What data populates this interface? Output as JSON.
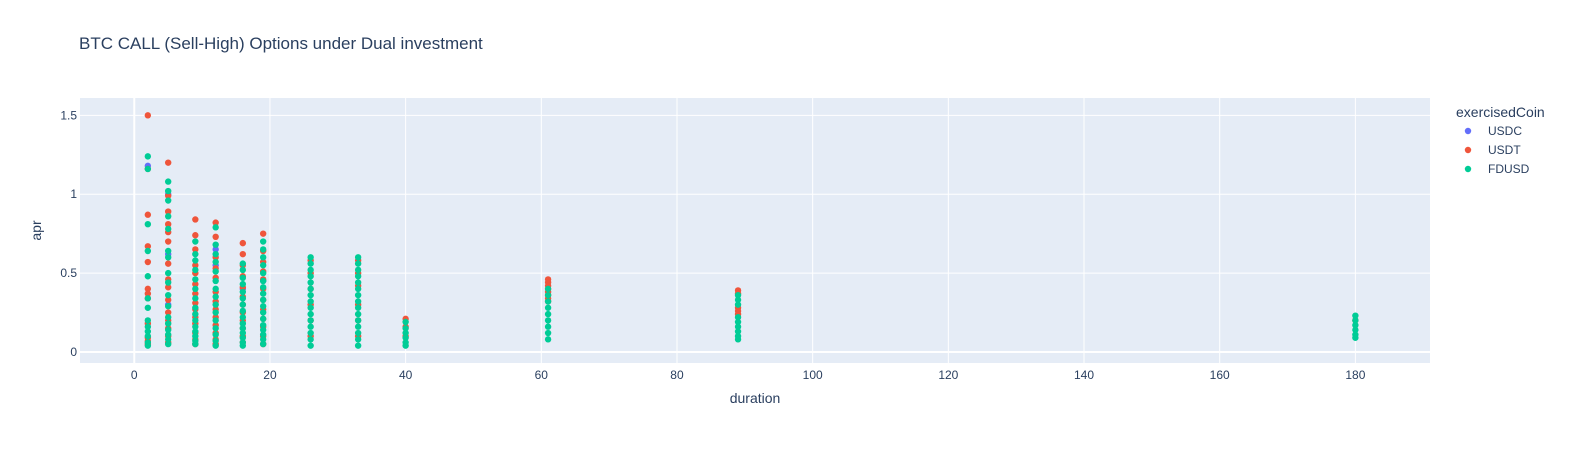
{
  "chart_data": {
    "type": "scatter",
    "title": "BTC CALL (Sell-High) Options under Dual investment",
    "xlabel": "duration",
    "ylabel": "apr",
    "xlim": [
      -8,
      191
    ],
    "ylim": [
      -0.07,
      1.61
    ],
    "x_ticks": [
      0,
      20,
      40,
      60,
      80,
      100,
      120,
      140,
      160,
      180
    ],
    "y_ticks": [
      0,
      0.5,
      1,
      1.5
    ],
    "y_tick_labels": [
      "0",
      "0.5",
      "1",
      "1.5"
    ],
    "grid": true,
    "legend": {
      "title": "exercisedCoin",
      "placement": "top-right"
    },
    "series": [
      {
        "name": "USDC",
        "color": "#636efa",
        "points": [
          [
            2,
            1.18
          ],
          [
            5,
            1.0
          ],
          [
            5,
            0.62
          ],
          [
            5,
            0.3
          ],
          [
            12,
            0.65
          ],
          [
            12,
            0.55
          ],
          [
            16,
            0.4
          ],
          [
            19,
            0.45
          ]
        ]
      },
      {
        "name": "USDT",
        "color": "#ef553b",
        "points": [
          [
            2,
            1.5
          ],
          [
            2,
            1.16
          ],
          [
            2,
            0.87
          ],
          [
            2,
            0.67
          ],
          [
            2,
            0.57
          ],
          [
            2,
            0.4
          ],
          [
            2,
            0.37
          ],
          [
            2,
            0.34
          ],
          [
            2,
            0.18
          ],
          [
            2,
            0.09
          ],
          [
            2,
            0.07
          ],
          [
            2,
            0.05
          ],
          [
            5,
            1.2
          ],
          [
            5,
            0.99
          ],
          [
            5,
            0.89
          ],
          [
            5,
            0.81
          ],
          [
            5,
            0.76
          ],
          [
            5,
            0.7
          ],
          [
            5,
            0.56
          ],
          [
            5,
            0.46
          ],
          [
            5,
            0.41
          ],
          [
            5,
            0.33
          ],
          [
            5,
            0.25
          ],
          [
            5,
            0.2
          ],
          [
            5,
            0.15
          ],
          [
            5,
            0.1
          ],
          [
            5,
            0.06
          ],
          [
            9,
            0.84
          ],
          [
            9,
            0.74
          ],
          [
            9,
            0.65
          ],
          [
            9,
            0.55
          ],
          [
            9,
            0.5
          ],
          [
            9,
            0.43
          ],
          [
            9,
            0.37
          ],
          [
            9,
            0.31
          ],
          [
            9,
            0.27
          ],
          [
            9,
            0.22
          ],
          [
            9,
            0.18
          ],
          [
            9,
            0.12
          ],
          [
            9,
            0.08
          ],
          [
            9,
            0.05
          ],
          [
            12,
            0.82
          ],
          [
            12,
            0.73
          ],
          [
            12,
            0.6
          ],
          [
            12,
            0.53
          ],
          [
            12,
            0.47
          ],
          [
            12,
            0.38
          ],
          [
            12,
            0.32
          ],
          [
            12,
            0.27
          ],
          [
            12,
            0.22
          ],
          [
            12,
            0.17
          ],
          [
            12,
            0.12
          ],
          [
            12,
            0.08
          ],
          [
            12,
            0.05
          ],
          [
            16,
            0.69
          ],
          [
            16,
            0.62
          ],
          [
            16,
            0.55
          ],
          [
            16,
            0.48
          ],
          [
            16,
            0.41
          ],
          [
            16,
            0.35
          ],
          [
            16,
            0.3
          ],
          [
            16,
            0.25
          ],
          [
            16,
            0.2
          ],
          [
            16,
            0.15
          ],
          [
            16,
            0.1
          ],
          [
            16,
            0.06
          ],
          [
            19,
            0.75
          ],
          [
            19,
            0.64
          ],
          [
            19,
            0.57
          ],
          [
            19,
            0.51
          ],
          [
            19,
            0.46
          ],
          [
            19,
            0.4
          ],
          [
            19,
            0.33
          ],
          [
            19,
            0.27
          ],
          [
            19,
            0.21
          ],
          [
            19,
            0.16
          ],
          [
            19,
            0.1
          ],
          [
            19,
            0.05
          ],
          [
            26,
            0.58
          ],
          [
            26,
            0.5
          ],
          [
            26,
            0.4
          ],
          [
            26,
            0.3
          ],
          [
            26,
            0.2
          ],
          [
            26,
            0.1
          ],
          [
            33,
            0.58
          ],
          [
            33,
            0.5
          ],
          [
            33,
            0.42
          ],
          [
            33,
            0.3
          ],
          [
            33,
            0.2
          ],
          [
            33,
            0.1
          ],
          [
            40,
            0.21
          ],
          [
            40,
            0.16
          ],
          [
            40,
            0.1
          ],
          [
            61,
            0.46
          ],
          [
            61,
            0.44
          ],
          [
            61,
            0.42
          ],
          [
            61,
            0.4
          ],
          [
            61,
            0.38
          ],
          [
            61,
            0.36
          ],
          [
            61,
            0.34
          ],
          [
            61,
            0.32
          ],
          [
            89,
            0.39
          ],
          [
            89,
            0.37
          ],
          [
            89,
            0.28
          ],
          [
            89,
            0.26
          ],
          [
            89,
            0.24
          ],
          [
            180,
            0.2
          ]
        ]
      },
      {
        "name": "FDUSD",
        "color": "#00cc96",
        "points": [
          [
            2,
            1.24
          ],
          [
            2,
            1.16
          ],
          [
            2,
            0.81
          ],
          [
            2,
            0.64
          ],
          [
            2,
            0.48
          ],
          [
            2,
            0.34
          ],
          [
            2,
            0.28
          ],
          [
            2,
            0.2
          ],
          [
            2,
            0.16
          ],
          [
            2,
            0.13
          ],
          [
            2,
            0.1
          ],
          [
            2,
            0.06
          ],
          [
            2,
            0.04
          ],
          [
            5,
            1.08
          ],
          [
            5,
            1.02
          ],
          [
            5,
            0.96
          ],
          [
            5,
            0.86
          ],
          [
            5,
            0.78
          ],
          [
            5,
            0.64
          ],
          [
            5,
            0.6
          ],
          [
            5,
            0.5
          ],
          [
            5,
            0.44
          ],
          [
            5,
            0.36
          ],
          [
            5,
            0.29
          ],
          [
            5,
            0.22
          ],
          [
            5,
            0.18
          ],
          [
            5,
            0.14
          ],
          [
            5,
            0.11
          ],
          [
            5,
            0.08
          ],
          [
            5,
            0.05
          ],
          [
            9,
            0.7
          ],
          [
            9,
            0.62
          ],
          [
            9,
            0.58
          ],
          [
            9,
            0.52
          ],
          [
            9,
            0.46
          ],
          [
            9,
            0.4
          ],
          [
            9,
            0.34
          ],
          [
            9,
            0.28
          ],
          [
            9,
            0.24
          ],
          [
            9,
            0.2
          ],
          [
            9,
            0.16
          ],
          [
            9,
            0.13
          ],
          [
            9,
            0.1
          ],
          [
            9,
            0.07
          ],
          [
            9,
            0.05
          ],
          [
            12,
            0.79
          ],
          [
            12,
            0.68
          ],
          [
            12,
            0.62
          ],
          [
            12,
            0.57
          ],
          [
            12,
            0.51
          ],
          [
            12,
            0.45
          ],
          [
            12,
            0.4
          ],
          [
            12,
            0.35
          ],
          [
            12,
            0.3
          ],
          [
            12,
            0.25
          ],
          [
            12,
            0.2
          ],
          [
            12,
            0.15
          ],
          [
            12,
            0.11
          ],
          [
            12,
            0.07
          ],
          [
            12,
            0.04
          ],
          [
            16,
            0.56
          ],
          [
            16,
            0.52
          ],
          [
            16,
            0.47
          ],
          [
            16,
            0.43
          ],
          [
            16,
            0.38
          ],
          [
            16,
            0.34
          ],
          [
            16,
            0.3
          ],
          [
            16,
            0.26
          ],
          [
            16,
            0.22
          ],
          [
            16,
            0.18
          ],
          [
            16,
            0.15
          ],
          [
            16,
            0.12
          ],
          [
            16,
            0.09
          ],
          [
            16,
            0.06
          ],
          [
            16,
            0.04
          ],
          [
            19,
            0.7
          ],
          [
            19,
            0.65
          ],
          [
            19,
            0.6
          ],
          [
            19,
            0.55
          ],
          [
            19,
            0.5
          ],
          [
            19,
            0.45
          ],
          [
            19,
            0.41
          ],
          [
            19,
            0.37
          ],
          [
            19,
            0.33
          ],
          [
            19,
            0.29
          ],
          [
            19,
            0.25
          ],
          [
            19,
            0.21
          ],
          [
            19,
            0.17
          ],
          [
            19,
            0.14
          ],
          [
            19,
            0.11
          ],
          [
            19,
            0.08
          ],
          [
            19,
            0.05
          ],
          [
            26,
            0.6
          ],
          [
            26,
            0.56
          ],
          [
            26,
            0.52
          ],
          [
            26,
            0.48
          ],
          [
            26,
            0.44
          ],
          [
            26,
            0.4
          ],
          [
            26,
            0.36
          ],
          [
            26,
            0.32
          ],
          [
            26,
            0.28
          ],
          [
            26,
            0.24
          ],
          [
            26,
            0.2
          ],
          [
            26,
            0.16
          ],
          [
            26,
            0.12
          ],
          [
            26,
            0.08
          ],
          [
            26,
            0.04
          ],
          [
            33,
            0.6
          ],
          [
            33,
            0.56
          ],
          [
            33,
            0.52
          ],
          [
            33,
            0.48
          ],
          [
            33,
            0.44
          ],
          [
            33,
            0.4
          ],
          [
            33,
            0.36
          ],
          [
            33,
            0.32
          ],
          [
            33,
            0.28
          ],
          [
            33,
            0.24
          ],
          [
            33,
            0.2
          ],
          [
            33,
            0.16
          ],
          [
            33,
            0.12
          ],
          [
            33,
            0.08
          ],
          [
            33,
            0.04
          ],
          [
            40,
            0.19
          ],
          [
            40,
            0.15
          ],
          [
            40,
            0.12
          ],
          [
            40,
            0.09
          ],
          [
            40,
            0.06
          ],
          [
            40,
            0.04
          ],
          [
            61,
            0.4
          ],
          [
            61,
            0.36
          ],
          [
            61,
            0.32
          ],
          [
            61,
            0.28
          ],
          [
            61,
            0.24
          ],
          [
            61,
            0.2
          ],
          [
            61,
            0.16
          ],
          [
            61,
            0.12
          ],
          [
            61,
            0.08
          ],
          [
            89,
            0.36
          ],
          [
            89,
            0.33
          ],
          [
            89,
            0.3
          ],
          [
            89,
            0.22
          ],
          [
            89,
            0.19
          ],
          [
            89,
            0.16
          ],
          [
            89,
            0.13
          ],
          [
            89,
            0.1
          ],
          [
            89,
            0.08
          ],
          [
            180,
            0.23
          ],
          [
            180,
            0.2
          ],
          [
            180,
            0.17
          ],
          [
            180,
            0.14
          ],
          [
            180,
            0.11
          ],
          [
            180,
            0.09
          ]
        ]
      }
    ]
  }
}
